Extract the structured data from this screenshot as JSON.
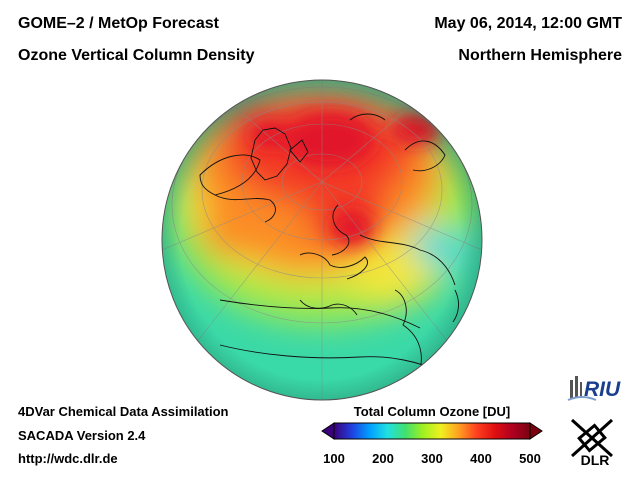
{
  "header": {
    "title_line1": "GOME–2 / MetOp Forecast",
    "title_line2": "Ozone Vertical Column Density",
    "date": "May 06, 2014, 12:00 GMT",
    "region": "Northern Hemisphere"
  },
  "footer": {
    "line1": "4DVar Chemical Data Assimilation",
    "line2": "SACADA Version 2.4",
    "url": "http://wdc.dlr.de"
  },
  "colorbar": {
    "title": "Total Column Ozone [DU]",
    "min": 100,
    "max": 500,
    "ticks": [
      "100",
      "200",
      "300",
      "400",
      "500"
    ],
    "colors": [
      "#3a007a",
      "#2040e0",
      "#00a0ff",
      "#20e0e0",
      "#40e070",
      "#a0f020",
      "#f0f020",
      "#ffa020",
      "#ff4020",
      "#e01010",
      "#b00020",
      "#7a0010"
    ]
  },
  "logos": {
    "riu": "RIU",
    "dlr": "DLR"
  },
  "map": {
    "projection": "orthographic, Northern Hemisphere",
    "ozone_colors": {
      "ocean_base": "#3ad9a8",
      "mid": "#a6e848",
      "yellow": "#f3e63a",
      "orange": "#fb8c28",
      "red": "#f33a25",
      "deep_red": "#e2142a",
      "light_cyan": "#3fd7e0"
    }
  }
}
